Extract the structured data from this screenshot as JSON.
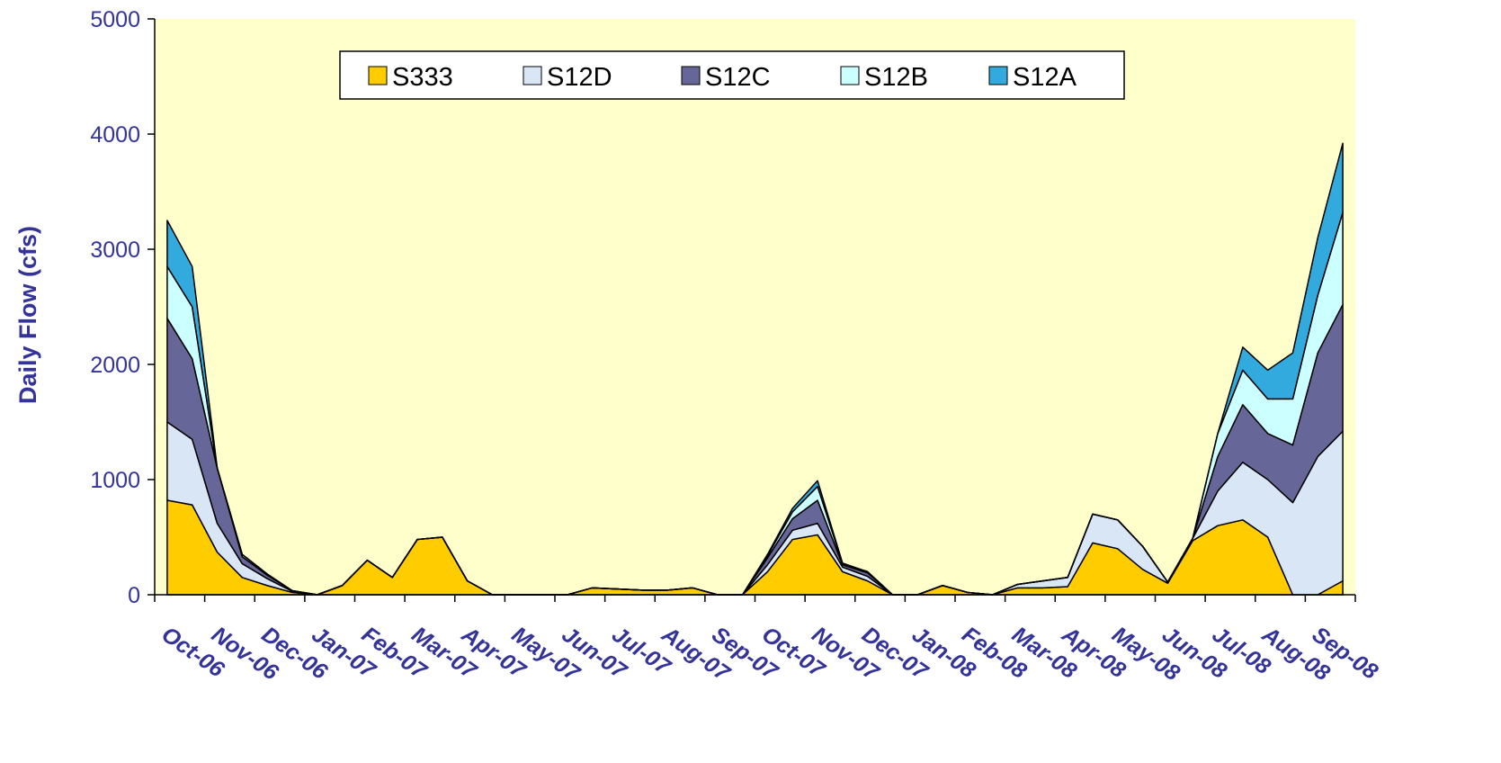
{
  "chart_data": {
    "type": "stacked-area",
    "y_label": "Daily Flow (cfs)",
    "categories": [
      "Oct-06",
      null,
      "Nov-06",
      null,
      "Dec-06",
      null,
      "Jan-07",
      null,
      "Feb-07",
      null,
      "Mar-07",
      null,
      "Apr-07",
      null,
      "May-07",
      null,
      "Jun-07",
      null,
      "Jul-07",
      null,
      "Aug-07",
      null,
      "Sep-07",
      null,
      "Oct-07",
      null,
      "Nov-07",
      null,
      "Dec-07",
      null,
      "Jan-08",
      null,
      "Feb-08",
      null,
      "Mar-08",
      null,
      "Apr-08",
      null,
      "May-08",
      null,
      "Jun-08",
      null,
      "Jul-08",
      null,
      "Aug-08",
      null,
      "Sep-08",
      null
    ],
    "series": [
      {
        "name": "S333",
        "color": "#ffcc00",
        "values": [
          820,
          780,
          370,
          150,
          80,
          20,
          0,
          80,
          300,
          150,
          480,
          500,
          120,
          0,
          0,
          0,
          0,
          60,
          50,
          40,
          40,
          60,
          0,
          0,
          200,
          480,
          520,
          200,
          120,
          0,
          0,
          80,
          20,
          0,
          60,
          60,
          70,
          450,
          400,
          220,
          100,
          470,
          600,
          650,
          500,
          0,
          0,
          120
        ]
      },
      {
        "name": "S12D",
        "color": "#d9e6f5",
        "values": [
          680,
          570,
          250,
          120,
          60,
          10,
          0,
          0,
          0,
          0,
          0,
          0,
          0,
          0,
          0,
          0,
          0,
          0,
          0,
          0,
          0,
          0,
          0,
          0,
          60,
          80,
          100,
          40,
          40,
          0,
          0,
          0,
          0,
          0,
          30,
          60,
          80,
          250,
          250,
          200,
          10,
          20,
          300,
          500,
          500,
          800,
          1200,
          1300
        ]
      },
      {
        "name": "S12C",
        "color": "#666699",
        "values": [
          900,
          700,
          480,
          60,
          30,
          5,
          0,
          0,
          0,
          0,
          0,
          0,
          0,
          0,
          0,
          0,
          0,
          0,
          0,
          0,
          0,
          0,
          0,
          0,
          60,
          100,
          200,
          20,
          30,
          0,
          0,
          0,
          0,
          0,
          0,
          0,
          0,
          0,
          0,
          0,
          0,
          0,
          300,
          500,
          400,
          500,
          900,
          1100
        ]
      },
      {
        "name": "S12B",
        "color": "#ccffff",
        "values": [
          450,
          450,
          0,
          20,
          10,
          0,
          0,
          0,
          0,
          0,
          0,
          0,
          0,
          0,
          0,
          0,
          0,
          0,
          0,
          0,
          0,
          0,
          0,
          0,
          20,
          60,
          120,
          10,
          10,
          0,
          0,
          0,
          0,
          0,
          0,
          0,
          0,
          0,
          0,
          0,
          0,
          0,
          200,
          300,
          300,
          400,
          500,
          800
        ]
      },
      {
        "name": "S12A",
        "color": "#33aadd",
        "values": [
          400,
          350,
          0,
          0,
          0,
          0,
          0,
          0,
          0,
          0,
          0,
          0,
          0,
          0,
          0,
          0,
          0,
          0,
          0,
          0,
          0,
          0,
          0,
          0,
          10,
          30,
          50,
          5,
          0,
          0,
          0,
          0,
          0,
          0,
          0,
          0,
          0,
          0,
          0,
          0,
          0,
          0,
          0,
          200,
          250,
          400,
          500,
          600
        ]
      }
    ],
    "ylim": [
      0,
      5000
    ],
    "yticks": [
      0,
      1000,
      2000,
      3000,
      4000,
      5000
    ],
    "plot_background": "#ffffcc",
    "legend": "top"
  }
}
